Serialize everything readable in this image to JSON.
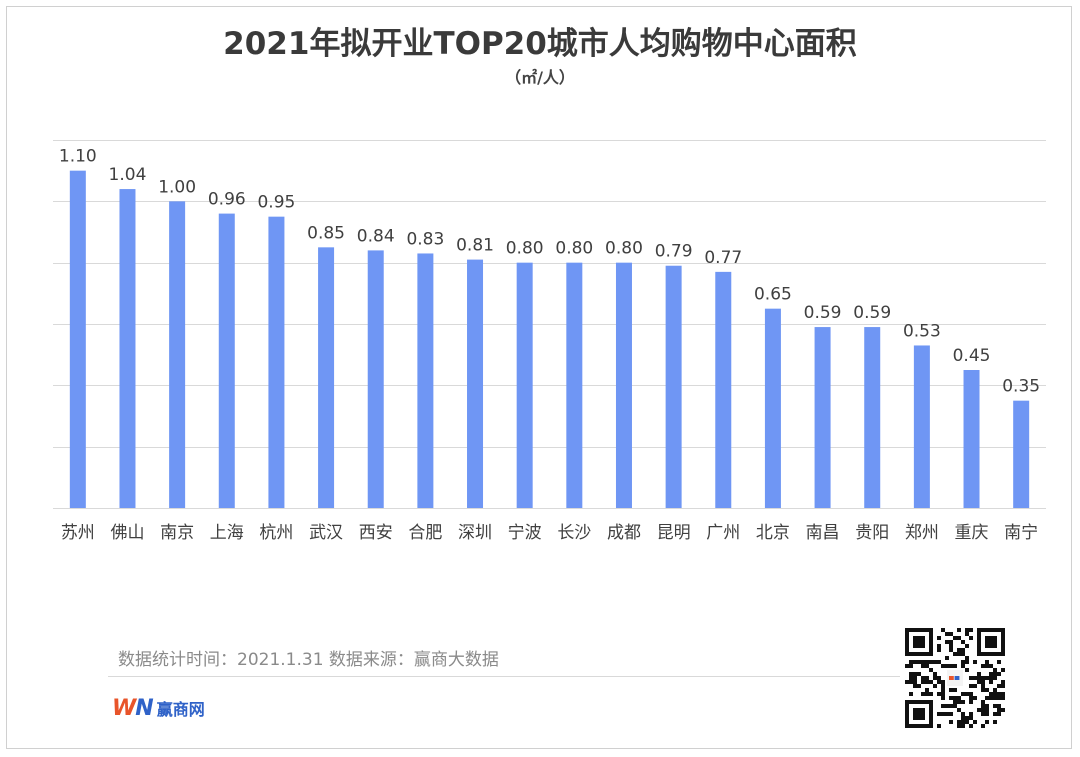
{
  "title": "2021年拟开业TOP20城市人均购物中心面积",
  "unit_label": "（㎡/人）",
  "footnote": "数据统计时间：2021.1.31  数据来源：赢商大数据",
  "logo": {
    "mark_w": "W",
    "mark_n": "N",
    "text": "赢商网"
  },
  "qr_icon": "qr-code-icon",
  "colors": {
    "bar": "#6f96f4",
    "grid": "#d9d9d9",
    "text": "#404040"
  },
  "chart_data": {
    "type": "bar",
    "title": "2021年拟开业TOP20城市人均购物中心面积",
    "ylabel": "（㎡/人）",
    "categories": [
      "苏州",
      "佛山",
      "南京",
      "上海",
      "杭州",
      "武汉",
      "西安",
      "合肥",
      "深圳",
      "宁波",
      "长沙",
      "成都",
      "昆明",
      "广州",
      "北京",
      "南昌",
      "贵阳",
      "郑州",
      "重庆",
      "南宁"
    ],
    "values": [
      1.1,
      1.04,
      1.0,
      0.96,
      0.95,
      0.85,
      0.84,
      0.83,
      0.81,
      0.8,
      0.8,
      0.8,
      0.79,
      0.77,
      0.65,
      0.59,
      0.59,
      0.53,
      0.45,
      0.35
    ],
    "value_labels": [
      "1.10",
      "1.04",
      "1.00",
      "0.96",
      "0.95",
      "0.85",
      "0.84",
      "0.83",
      "0.81",
      "0.80",
      "0.80",
      "0.80",
      "0.79",
      "0.77",
      "0.65",
      "0.59",
      "0.59",
      "0.53",
      "0.45",
      "0.35"
    ],
    "ylim": [
      0,
      1.2
    ],
    "grid": true,
    "legend": "none"
  }
}
